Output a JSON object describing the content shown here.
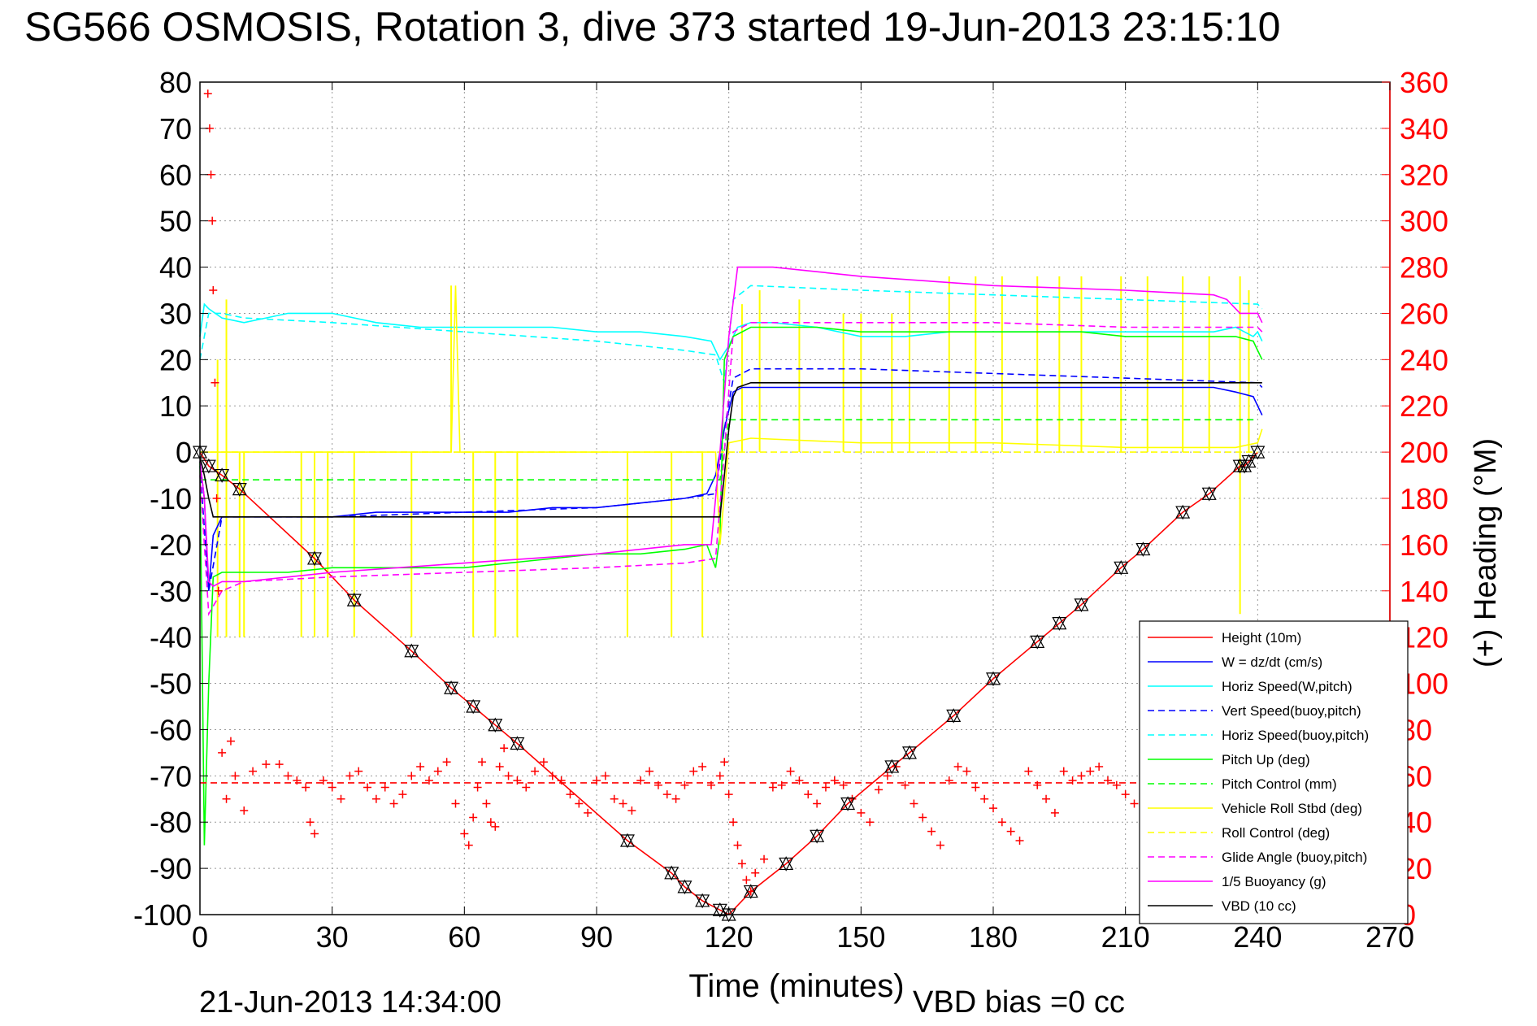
{
  "chart_data": {
    "type": "line",
    "title": "SG566 OSMOSIS, Rotation 3, dive 373 started 19-Jun-2013 23:15:10",
    "xlabel": "Time (minutes)",
    "ylabel_right": "(+) Heading (°M)",
    "footer_date": "21-Jun-2013 14:34:00",
    "footer_vbd": "VBD bias =0 cc",
    "xlim": [
      0,
      270
    ],
    "ylim": [
      -100,
      80
    ],
    "ylim_right": [
      0,
      360
    ],
    "x_ticks": [
      0,
      30,
      60,
      90,
      120,
      150,
      180,
      210,
      240,
      270
    ],
    "y_ticks": [
      80,
      70,
      60,
      50,
      40,
      30,
      20,
      10,
      0,
      -10,
      -20,
      -30,
      -40,
      -50,
      -60,
      -70,
      -80,
      -90,
      -100
    ],
    "y_ticks_right": [
      360,
      340,
      320,
      300,
      280,
      260,
      240,
      220,
      200,
      180,
      160,
      140,
      120,
      100,
      80,
      60,
      40,
      20,
      0
    ],
    "grid": true,
    "legend_position": "bottom-right",
    "series": [
      {
        "name": "Height (10m)",
        "color": "#ff0000",
        "style": "solid",
        "x": [
          0,
          2,
          5,
          9,
          26,
          35,
          48,
          57,
          62,
          67,
          72,
          97,
          107,
          110,
          114,
          118,
          120,
          125,
          133,
          140,
          147,
          157,
          161,
          171,
          180,
          190,
          195,
          200,
          209,
          214,
          223,
          229,
          236,
          237,
          238,
          240
        ],
        "y": [
          0,
          -3,
          -5,
          -8,
          -23,
          -32,
          -43,
          -51,
          -55,
          -59,
          -63,
          -84,
          -91,
          -94,
          -97,
          -99,
          -100,
          -95,
          -89,
          -83,
          -76,
          -68,
          -65,
          -57,
          -49,
          -41,
          -37,
          -33,
          -25,
          -21,
          -13,
          -9,
          -3,
          -3,
          -2,
          0
        ]
      },
      {
        "name": "W = dz/dt (cm/s)",
        "color": "#0000ff",
        "style": "solid",
        "x": [
          0,
          1,
          2,
          3,
          5,
          10,
          20,
          30,
          40,
          50,
          60,
          70,
          80,
          90,
          100,
          110,
          115,
          117,
          119,
          121,
          123,
          125,
          130,
          140,
          150,
          160,
          170,
          180,
          190,
          200,
          210,
          220,
          230,
          235,
          239,
          240,
          241
        ],
        "y": [
          -2,
          -10,
          -30,
          -18,
          -14,
          -14,
          -14,
          -14,
          -13,
          -13,
          -13,
          -13,
          -12,
          -12,
          -11,
          -10,
          -9,
          -5,
          5,
          13,
          14,
          14,
          14,
          14,
          14,
          14,
          14,
          14,
          14,
          14,
          14,
          14,
          14,
          13,
          12,
          10,
          8
        ]
      },
      {
        "name": "Horiz Speed(W,pitch)",
        "color": "#00ffff",
        "style": "solid",
        "x": [
          0,
          1,
          2,
          5,
          10,
          15,
          20,
          25,
          30,
          40,
          50,
          60,
          70,
          80,
          90,
          100,
          110,
          116,
          118,
          120,
          122,
          125,
          130,
          140,
          150,
          160,
          170,
          180,
          190,
          200,
          210,
          220,
          230,
          235,
          239,
          240,
          241
        ],
        "y": [
          25,
          32,
          31,
          29,
          28,
          29,
          30,
          30,
          30,
          28,
          27,
          27,
          27,
          27,
          26,
          26,
          25,
          24,
          20,
          23,
          27,
          28,
          28,
          27,
          25,
          25,
          26,
          26,
          26,
          26,
          26,
          26,
          26,
          27,
          25,
          26,
          24
        ]
      },
      {
        "name": "Vert Speed(buoy,pitch)",
        "color": "#0000ff",
        "style": "dashed",
        "x": [
          0,
          2,
          5,
          10,
          30,
          60,
          90,
          110,
          117,
          119,
          121,
          125,
          150,
          180,
          210,
          240,
          241
        ],
        "y": [
          -3,
          -30,
          -14,
          -14,
          -14,
          -13,
          -12,
          -10,
          -9,
          5,
          16,
          18,
          18,
          17,
          16,
          15,
          14
        ]
      },
      {
        "name": "Horiz Speed(buoy,pitch)",
        "color": "#00ffff",
        "style": "dashed",
        "x": [
          0,
          2,
          5,
          10,
          30,
          60,
          90,
          110,
          117,
          119,
          121,
          125,
          150,
          180,
          210,
          240,
          241
        ],
        "y": [
          20,
          30,
          30,
          29,
          28,
          26,
          24,
          22,
          21,
          15,
          33,
          36,
          35,
          34,
          33,
          32,
          31
        ]
      },
      {
        "name": "Pitch Up (deg)",
        "color": "#00ff00",
        "style": "solid",
        "x": [
          0,
          1,
          2,
          3,
          5,
          10,
          20,
          30,
          40,
          50,
          60,
          70,
          80,
          90,
          100,
          110,
          115,
          117,
          118,
          119,
          121,
          125,
          130,
          140,
          150,
          160,
          170,
          180,
          190,
          200,
          210,
          220,
          230,
          235,
          239,
          240,
          241
        ],
        "y": [
          -2,
          -85,
          -50,
          -27,
          -26,
          -26,
          -26,
          -25,
          -25,
          -25,
          -25,
          -24,
          -23,
          -22,
          -22,
          -21,
          -20,
          -25,
          -18,
          20,
          25,
          27,
          27,
          27,
          26,
          26,
          26,
          26,
          26,
          26,
          25,
          25,
          25,
          25,
          24,
          22,
          20
        ]
      },
      {
        "name": "Pitch Control (mm)",
        "color": "#00ff00",
        "style": "dashed",
        "x": [
          0,
          5,
          30,
          60,
          90,
          116,
          118,
          120,
          150,
          180,
          210,
          240
        ],
        "y": [
          -6,
          -6,
          -6,
          -6,
          -6,
          -6,
          -6,
          7,
          7,
          7,
          7,
          7
        ]
      },
      {
        "name": "Vehicle Roll Stbd (deg)",
        "color": "#ffff00",
        "style": "solid",
        "x": [
          0,
          5,
          10,
          30,
          57,
          58,
          59,
          60,
          90,
          117,
          118,
          120,
          125,
          150,
          180,
          210,
          235,
          240,
          241
        ],
        "y": [
          0,
          0,
          0,
          0,
          0,
          36,
          0,
          0,
          0,
          0,
          -20,
          2,
          3,
          2,
          2,
          1,
          1,
          2,
          5
        ]
      },
      {
        "name": "Roll Control (deg)",
        "color": "#ffff00",
        "style": "dashed",
        "x": [
          0,
          5,
          30,
          60,
          90,
          117,
          119,
          121,
          150,
          180,
          210,
          240
        ],
        "y": [
          0,
          0,
          0,
          0,
          0,
          0,
          0,
          0,
          0,
          0,
          0,
          0
        ]
      },
      {
        "name": "Glide Angle (buoy,pitch)",
        "color": "#ff00ff",
        "style": "dashed",
        "x": [
          0,
          2,
          5,
          10,
          30,
          60,
          90,
          110,
          117,
          119,
          121,
          125,
          150,
          180,
          210,
          240,
          241
        ],
        "y": [
          -5,
          -35,
          -30,
          -28,
          -27,
          -26,
          -25,
          -24,
          -23,
          0,
          26,
          28,
          28,
          28,
          27,
          27,
          26
        ]
      },
      {
        "name": "1/5 Buoyancy (g)",
        "color": "#ff00ff",
        "style": "solid",
        "x": [
          0,
          1,
          2,
          3,
          5,
          10,
          30,
          60,
          90,
          110,
          116,
          118,
          120,
          122,
          130,
          150,
          180,
          210,
          230,
          233,
          236,
          240,
          241
        ],
        "y": [
          -2,
          -10,
          -28,
          -29,
          -28,
          -28,
          -26,
          -24,
          -22,
          -20,
          -20,
          0,
          25,
          40,
          40,
          38,
          36,
          35,
          34,
          33,
          30,
          30,
          28
        ]
      },
      {
        "name": "VBD (10 cc)",
        "color": "#000000",
        "style": "solid",
        "x": [
          0,
          1,
          2,
          3,
          5,
          60,
          116,
          118,
          119,
          120,
          121,
          122,
          125,
          240,
          241
        ],
        "y": [
          -1,
          -5,
          -10,
          -14,
          -14,
          -14,
          -14,
          -14,
          -5,
          5,
          12,
          14,
          15,
          15,
          15
        ]
      },
      {
        "name": "Heading",
        "color": "#ff0000",
        "style": "markers",
        "axis": "right",
        "note": "red + markers, heading in degrees (right axis)",
        "x": [
          1.8,
          2.2,
          2.5,
          2.8,
          3.0,
          3.4,
          3.8,
          4.2,
          5,
          6,
          7,
          8,
          10,
          12,
          15,
          18,
          20,
          22,
          24,
          25,
          26,
          28,
          30,
          32,
          34,
          36,
          38,
          40,
          42,
          44,
          46,
          48,
          50,
          52,
          54,
          56,
          58,
          60,
          61,
          62,
          63,
          64,
          65,
          66,
          67,
          68,
          69,
          70,
          72,
          74,
          76,
          78,
          80,
          82,
          84,
          86,
          88,
          90,
          92,
          94,
          96,
          98,
          100,
          102,
          104,
          106,
          108,
          110,
          112,
          114,
          116,
          118,
          119,
          120,
          121,
          122,
          123,
          124,
          125,
          126,
          128,
          130,
          132,
          134,
          136,
          138,
          140,
          142,
          144,
          146,
          148,
          150,
          152,
          154,
          156,
          158,
          160,
          162,
          164,
          166,
          168,
          170,
          172,
          174,
          176,
          178,
          180,
          182,
          184,
          186,
          188,
          190,
          192,
          194,
          196,
          198,
          200,
          202,
          204,
          206,
          208,
          210,
          212
        ],
        "y": [
          355,
          340,
          320,
          300,
          270,
          230,
          180,
          140,
          70,
          50,
          75,
          60,
          45,
          62,
          65,
          65,
          60,
          58,
          55,
          40,
          35,
          58,
          55,
          50,
          60,
          62,
          55,
          50,
          55,
          48,
          52,
          60,
          64,
          58,
          62,
          66,
          48,
          35,
          30,
          42,
          55,
          66,
          48,
          40,
          38,
          64,
          72,
          60,
          58,
          55,
          62,
          66,
          60,
          58,
          52,
          48,
          44,
          58,
          60,
          50,
          48,
          45,
          58,
          62,
          56,
          52,
          50,
          56,
          62,
          64,
          56,
          60,
          66,
          52,
          40,
          30,
          22,
          15,
          10,
          18,
          24,
          55,
          56,
          62,
          58,
          52,
          48,
          55,
          58,
          56,
          50,
          44,
          40,
          54,
          60,
          64,
          56,
          48,
          42,
          36,
          30,
          58,
          64,
          62,
          55,
          50,
          46,
          40,
          36,
          32,
          62,
          56,
          50,
          44,
          62,
          58,
          60,
          62,
          64,
          58,
          56,
          52,
          48
        ]
      },
      {
        "name": "Heading mean",
        "color": "#ff0000",
        "style": "dashed",
        "axis": "right",
        "x": [
          0,
          240
        ],
        "y": [
          57,
          57
        ]
      },
      {
        "name": "Height markers",
        "color": "#000000",
        "style": "triangle-markers",
        "x": [
          0,
          2,
          5,
          9,
          26,
          35,
          48,
          57,
          62,
          67,
          72,
          97,
          107,
          110,
          114,
          118,
          120,
          125,
          133,
          140,
          147,
          157,
          161,
          171,
          180,
          190,
          195,
          200,
          209,
          214,
          223,
          229,
          236,
          237,
          238,
          240
        ],
        "y": [
          0,
          -3,
          -5,
          -8,
          -23,
          -32,
          -43,
          -51,
          -55,
          -59,
          -63,
          -84,
          -91,
          -94,
          -97,
          -99,
          -100,
          -95,
          -89,
          -83,
          -76,
          -68,
          -65,
          -57,
          -49,
          -41,
          -37,
          -33,
          -25,
          -21,
          -13,
          -9,
          -3,
          -3,
          -2,
          0
        ]
      }
    ],
    "roll_spikes": {
      "color": "#ffff00",
      "x": [
        4,
        6,
        9,
        10,
        23,
        26,
        29,
        35,
        48,
        57,
        62,
        67,
        72,
        97,
        107,
        114,
        123,
        127,
        136,
        146,
        150,
        157,
        161,
        170,
        176,
        182,
        190,
        195,
        200,
        209,
        215,
        223,
        229,
        236,
        238
      ],
      "up": [
        20,
        33,
        0,
        0,
        0,
        0,
        0,
        0,
        0,
        36,
        0,
        0,
        0,
        0,
        0,
        0,
        32,
        35,
        33,
        30,
        30,
        30,
        35,
        38,
        38,
        38,
        38,
        38,
        38,
        38,
        38,
        38,
        38,
        38,
        35
      ],
      "down": [
        -40,
        -40,
        -40,
        -40,
        -40,
        -40,
        -40,
        -40,
        -40,
        0,
        -40,
        -40,
        -40,
        -40,
        -40,
        -40,
        0,
        0,
        0,
        0,
        0,
        0,
        0,
        0,
        0,
        0,
        0,
        0,
        0,
        0,
        0,
        0,
        0,
        -35,
        0
      ]
    },
    "legend": [
      {
        "label": "Height (10m)",
        "color": "#ff0000",
        "style": "solid"
      },
      {
        "label": "W = dz/dt (cm/s)",
        "color": "#0000ff",
        "style": "solid"
      },
      {
        "label": "Horiz Speed(W,pitch)",
        "color": "#00ffff",
        "style": "solid"
      },
      {
        "label": "Vert Speed(buoy,pitch)",
        "color": "#0000ff",
        "style": "dashed"
      },
      {
        "label": "Horiz Speed(buoy,pitch)",
        "color": "#00ffff",
        "style": "dashed"
      },
      {
        "label": "Pitch Up (deg)",
        "color": "#00ff00",
        "style": "solid"
      },
      {
        "label": "Pitch Control (mm)",
        "color": "#00ff00",
        "style": "dashed"
      },
      {
        "label": "Vehicle Roll Stbd (deg)",
        "color": "#ffff00",
        "style": "solid"
      },
      {
        "label": "Roll Control (deg)",
        "color": "#ffff00",
        "style": "dashed"
      },
      {
        "label": "Glide Angle (buoy,pitch)",
        "color": "#ff00ff",
        "style": "dashed"
      },
      {
        "label": "1/5 Buoyancy (g)",
        "color": "#ff00ff",
        "style": "solid"
      },
      {
        "label": "VBD (10 cc)",
        "color": "#000000",
        "style": "solid"
      }
    ],
    "colors": {
      "right_axis": "#ff0000",
      "grid": "#999999",
      "axis": "#000000"
    }
  }
}
